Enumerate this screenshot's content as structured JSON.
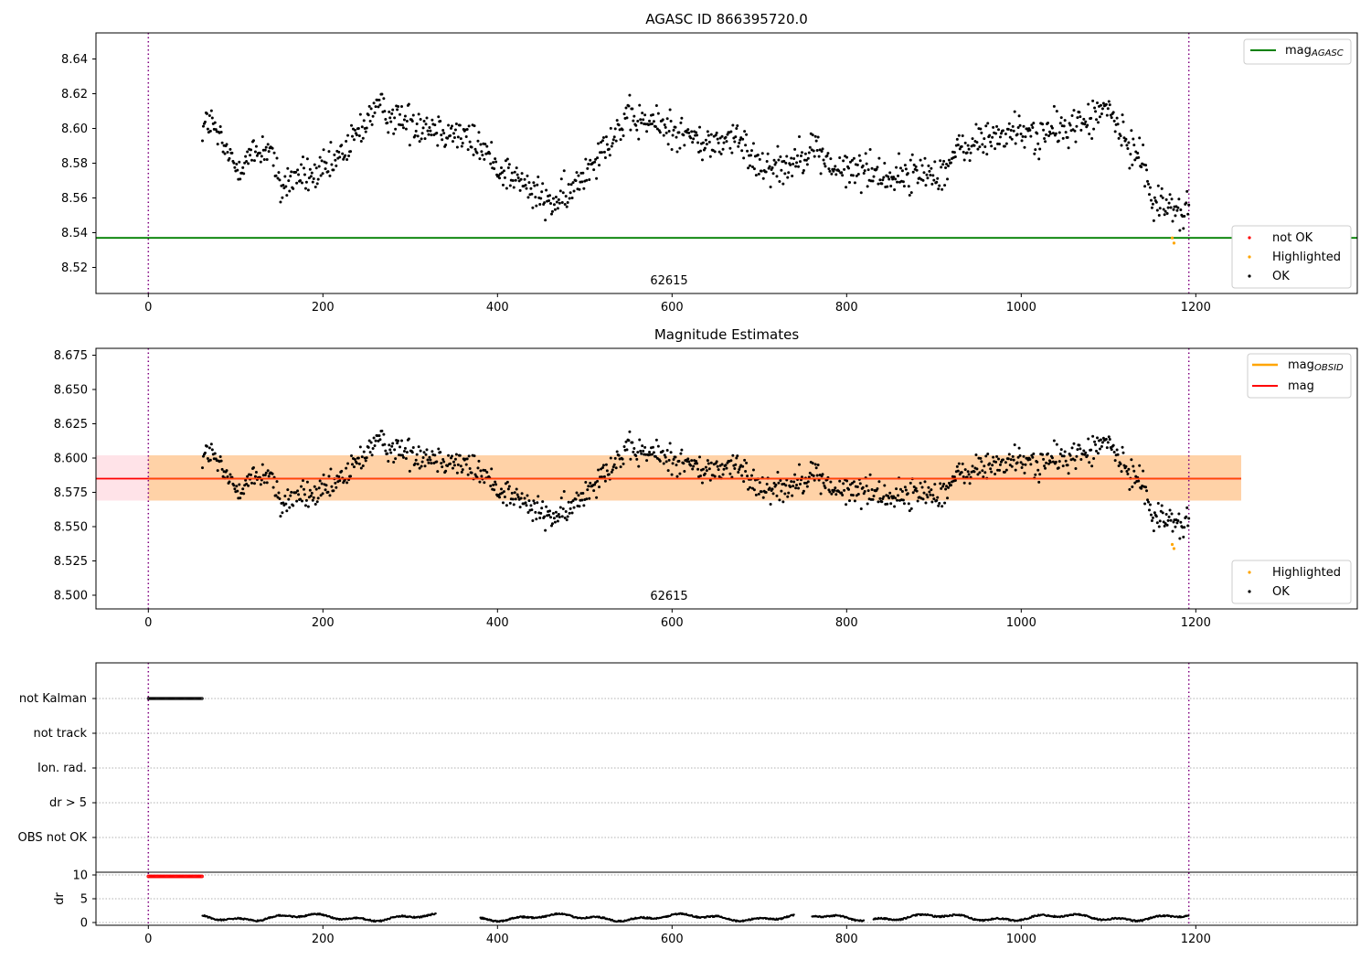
{
  "chart_data": [
    {
      "type": "scatter",
      "title": "AGASC ID 866395720.0",
      "xlim": [
        -60,
        1385
      ],
      "ylim": [
        8.505,
        8.655
      ],
      "xticks": [
        0,
        200,
        400,
        600,
        800,
        1000,
        1200
      ],
      "yticks": [
        8.52,
        8.54,
        8.56,
        8.58,
        8.6,
        8.62,
        8.64
      ],
      "ytick_labels": [
        "8.52",
        "8.54",
        "8.56",
        "8.58",
        "8.60",
        "8.62",
        "8.64"
      ],
      "obsid_label": "62615",
      "obsid_x": 595,
      "vlines_dotted": [
        0,
        1192
      ],
      "hlines": [
        {
          "name": "mag_AGASC",
          "y": 8.537,
          "color": "#008000"
        }
      ],
      "legend_upper": [
        {
          "label": "mag",
          "sub": "AGASC",
          "color": "#008000"
        }
      ],
      "legend_lower": [
        {
          "label": "not OK",
          "color": "#ff0000"
        },
        {
          "label": "Highlighted",
          "color": "#ffa500"
        },
        {
          "label": "OK",
          "color": "#000000"
        }
      ],
      "ok_trend": {
        "x": [
          62,
          70,
          85,
          100,
          120,
          140,
          150,
          170,
          190,
          210,
          230,
          260,
          290,
          320,
          350,
          380,
          400,
          420,
          440,
          460,
          480,
          500,
          520,
          550,
          580,
          610,
          640,
          670,
          700,
          730,
          760,
          790,
          820,
          850,
          880,
          910,
          930,
          960,
          990,
          1020,
          1050,
          1080,
          1100,
          1120,
          1140,
          1150,
          1170,
          1185,
          1192
        ],
        "y": [
          8.6,
          8.605,
          8.59,
          8.578,
          8.585,
          8.59,
          8.565,
          8.573,
          8.572,
          8.578,
          8.59,
          8.612,
          8.605,
          8.602,
          8.598,
          8.59,
          8.578,
          8.572,
          8.563,
          8.557,
          8.56,
          8.575,
          8.59,
          8.605,
          8.603,
          8.598,
          8.59,
          8.595,
          8.58,
          8.578,
          8.59,
          8.575,
          8.577,
          8.572,
          8.574,
          8.575,
          8.588,
          8.594,
          8.598,
          8.596,
          8.6,
          8.605,
          8.612,
          8.59,
          8.585,
          8.555,
          8.557,
          8.55,
          8.555
        ],
        "n": 1100,
        "jitter": 0.007
      },
      "highlighted": [
        {
          "x": 1173,
          "y": 8.537
        },
        {
          "x": 1175,
          "y": 8.534
        }
      ]
    },
    {
      "type": "scatter",
      "title": "Magnitude Estimates",
      "xlim": [
        -60,
        1385
      ],
      "ylim": [
        8.49,
        8.68
      ],
      "xticks": [
        0,
        200,
        400,
        600,
        800,
        1000,
        1200
      ],
      "yticks": [
        8.5,
        8.525,
        8.55,
        8.575,
        8.6,
        8.625,
        8.65,
        8.675
      ],
      "ytick_labels": [
        "8.500",
        "8.525",
        "8.550",
        "8.575",
        "8.600",
        "8.625",
        "8.650",
        "8.675"
      ],
      "obsid_label": "62615",
      "obsid_x": 595,
      "vlines_dotted": [
        0,
        1192
      ],
      "mag_line": {
        "y": 8.585,
        "x_range": [
          -60,
          1252
        ],
        "color": "#ff0000"
      },
      "band_outer": {
        "y0": 8.569,
        "y1": 8.602,
        "x_range": [
          -60,
          1252
        ],
        "color": "#ffc0cb"
      },
      "band_inner": {
        "y0": 8.569,
        "y1": 8.602,
        "x_range": [
          0,
          1252
        ],
        "color": "#ffa500"
      },
      "legend_upper": [
        {
          "label": "mag",
          "sub": "OBSID",
          "color": "#ffa500"
        },
        {
          "label": "mag",
          "sub": "",
          "color": "#ff0000"
        }
      ],
      "legend_lower": [
        {
          "label": "Highlighted",
          "color": "#ffa500"
        },
        {
          "label": "OK",
          "color": "#000000"
        }
      ],
      "highlighted": [
        {
          "x": 1173,
          "y": 8.537
        },
        {
          "x": 1175,
          "y": 8.534
        }
      ]
    },
    {
      "type": "scatter",
      "title": "",
      "xlim": [
        -60,
        1385
      ],
      "flag_rows": [
        "not Kalman",
        "not track",
        "Ion. rad.",
        "dr > 5",
        "OBS not OK"
      ],
      "flag_segments": [
        {
          "row": "not Kalman",
          "x0": 0,
          "x1": 62
        }
      ],
      "dr_ylabel": "dr",
      "dr_yticks": [
        0,
        5,
        10
      ],
      "dr_ylim": [
        -1,
        11
      ],
      "dr_red_segment": {
        "x0": 0,
        "x1": 62,
        "y": 9.7
      },
      "dr_gaps": [
        [
          330,
          380
        ],
        [
          740,
          760
        ],
        [
          820,
          830
        ]
      ],
      "xticks": [
        0,
        200,
        400,
        600,
        800,
        1000,
        1200
      ]
    }
  ]
}
